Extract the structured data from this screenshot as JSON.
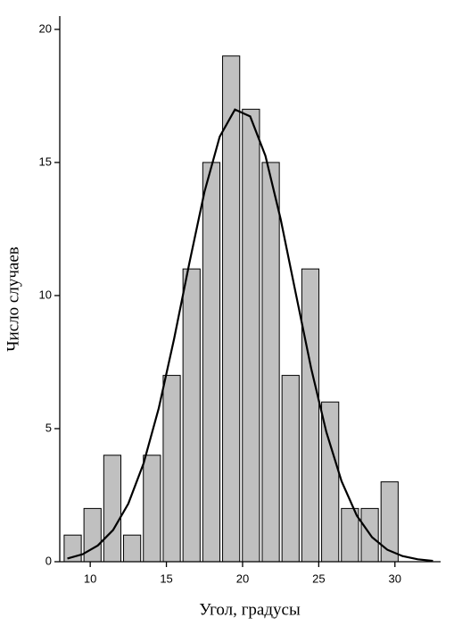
{
  "chart_data": {
    "type": "histogram",
    "xlabel": "Угол, градусы",
    "ylabel": "Число случаев",
    "bins": [
      8.2,
      9.5,
      10.8,
      12.1,
      13.4,
      14.7,
      16,
      17.3,
      18.6,
      19.9,
      21.2,
      22.5,
      23.8,
      25.1,
      26.4,
      27.7,
      29,
      30.3
    ],
    "values": [
      1,
      2,
      4,
      1,
      4,
      7,
      11,
      15,
      19,
      17,
      15,
      7,
      11,
      6,
      2,
      2,
      3
    ],
    "color": "#c0c0c0",
    "fit": {
      "type": "line",
      "color": "#000000",
      "x": [
        8.5,
        9.5,
        10.5,
        11.5,
        12.5,
        13.5,
        14.5,
        15.5,
        16.5,
        17.5,
        18.5,
        19.5,
        20.5,
        21.5,
        22.5,
        23.5,
        24.5,
        25.5,
        26.5,
        27.5,
        28.5,
        29.5,
        30.5,
        31.5,
        32.5
      ],
      "values": [
        0.12,
        0.28,
        0.61,
        1.19,
        2.18,
        3.69,
        5.77,
        8.36,
        11.2,
        13.9,
        15.97,
        16.99,
        16.73,
        15.25,
        12.87,
        10.06,
        7.27,
        4.87,
        3.02,
        1.73,
        0.92,
        0.45,
        0.21,
        0.09,
        0.03
      ]
    },
    "xlim": [
      8,
      33
    ],
    "ylim": [
      0,
      20.5
    ],
    "xticks": [
      10,
      15,
      20,
      25,
      30
    ],
    "yticks": [
      0,
      5,
      10,
      15,
      20
    ]
  }
}
